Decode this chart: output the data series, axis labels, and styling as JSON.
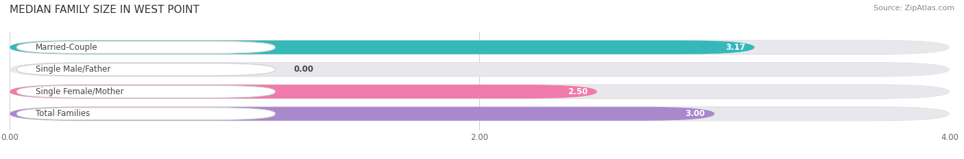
{
  "title": "MEDIAN FAMILY SIZE IN WEST POINT",
  "source": "Source: ZipAtlas.com",
  "categories": [
    "Married-Couple",
    "Single Male/Father",
    "Single Female/Mother",
    "Total Families"
  ],
  "values": [
    3.17,
    0.0,
    2.5,
    3.0
  ],
  "bar_colors": [
    "#36b8b8",
    "#a8b8e8",
    "#f07aaa",
    "#aa88cc"
  ],
  "bar_height": 0.62,
  "xlim": [
    0,
    4.0
  ],
  "xticks": [
    0.0,
    2.0,
    4.0
  ],
  "xtick_labels": [
    "0.00",
    "2.00",
    "4.00"
  ],
  "label_fontsize": 8.5,
  "value_fontsize": 8.5,
  "title_fontsize": 11,
  "source_fontsize": 8,
  "background_color": "#ffffff",
  "bar_background_color": "#e8e8ec",
  "bar_bg_edge_color": "#d8d8de",
  "label_box_color": "#ffffff",
  "label_text_color": "#444444"
}
